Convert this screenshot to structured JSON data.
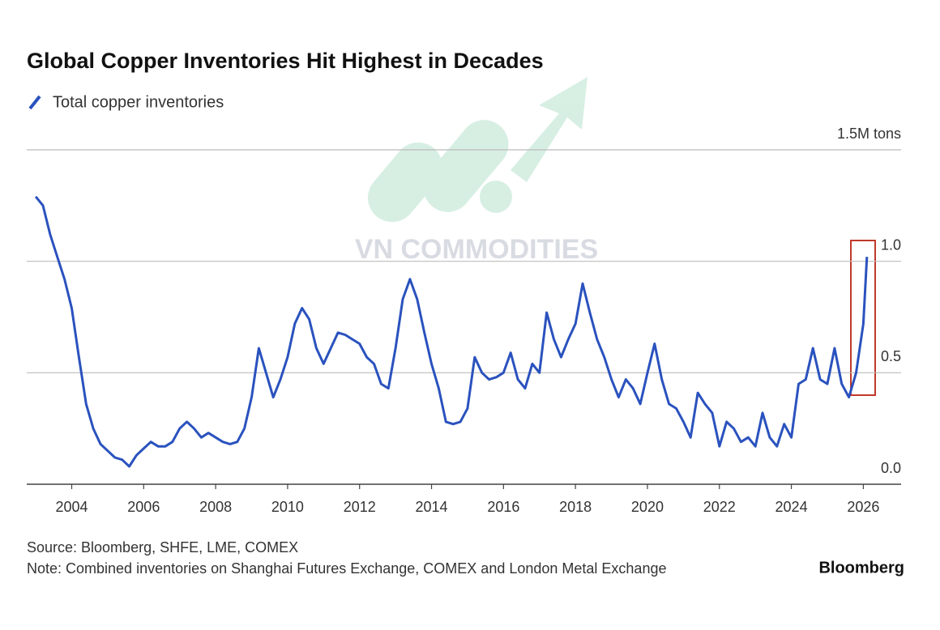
{
  "chart_data": {
    "type": "line",
    "title": "Global Copper Inventories Hit Highest in Decades",
    "watermark": "VN COMMODITIES",
    "source": "Source: Bloomberg, SHFE, LME, COMEX",
    "note": "Note: Combined inventories on Shanghai Futures Exchange, COMEX and London Metal Exchange",
    "brand": "Bloomberg",
    "x": [
      2003.0,
      2003.2,
      2003.4,
      2003.6,
      2003.8,
      2004.0,
      2004.2,
      2004.4,
      2004.6,
      2004.8,
      2005.0,
      2005.2,
      2005.4,
      2005.6,
      2005.8,
      2006.0,
      2006.2,
      2006.4,
      2006.6,
      2006.8,
      2007.0,
      2007.2,
      2007.4,
      2007.6,
      2007.8,
      2008.0,
      2008.2,
      2008.4,
      2008.6,
      2008.8,
      2009.0,
      2009.2,
      2009.4,
      2009.6,
      2009.8,
      2010.0,
      2010.2,
      2010.4,
      2010.6,
      2010.8,
      2011.0,
      2011.2,
      2011.4,
      2011.6,
      2011.8,
      2012.0,
      2012.2,
      2012.4,
      2012.6,
      2012.8,
      2013.0,
      2013.2,
      2013.4,
      2013.6,
      2013.8,
      2014.0,
      2014.2,
      2014.4,
      2014.6,
      2014.8,
      2015.0,
      2015.2,
      2015.4,
      2015.6,
      2015.8,
      2016.0,
      2016.2,
      2016.4,
      2016.6,
      2016.8,
      2017.0,
      2017.2,
      2017.4,
      2017.6,
      2017.8,
      2018.0,
      2018.2,
      2018.4,
      2018.6,
      2018.8,
      2019.0,
      2019.2,
      2019.4,
      2019.6,
      2019.8,
      2020.0,
      2020.2,
      2020.4,
      2020.6,
      2020.8,
      2021.0,
      2021.2,
      2021.4,
      2021.6,
      2021.8,
      2022.0,
      2022.2,
      2022.4,
      2022.6,
      2022.8,
      2023.0,
      2023.2,
      2023.4,
      2023.6,
      2023.8,
      2024.0,
      2024.2,
      2024.4,
      2024.6,
      2024.8,
      2025.0,
      2025.2,
      2025.4,
      2025.6,
      2025.8,
      2026.0,
      2026.1
    ],
    "series": [
      {
        "name": "Total copper inventories",
        "color": "#2a52be",
        "values": [
          1.29,
          1.25,
          1.12,
          1.02,
          0.92,
          0.79,
          0.57,
          0.36,
          0.25,
          0.18,
          0.15,
          0.12,
          0.11,
          0.08,
          0.13,
          0.16,
          0.19,
          0.17,
          0.17,
          0.19,
          0.25,
          0.28,
          0.25,
          0.21,
          0.23,
          0.21,
          0.19,
          0.18,
          0.19,
          0.25,
          0.39,
          0.61,
          0.5,
          0.39,
          0.47,
          0.57,
          0.72,
          0.79,
          0.74,
          0.61,
          0.54,
          0.61,
          0.68,
          0.67,
          0.65,
          0.63,
          0.57,
          0.54,
          0.45,
          0.43,
          0.61,
          0.83,
          0.92,
          0.83,
          0.68,
          0.54,
          0.43,
          0.28,
          0.27,
          0.28,
          0.34,
          0.57,
          0.5,
          0.47,
          0.48,
          0.5,
          0.59,
          0.47,
          0.43,
          0.54,
          0.5,
          0.77,
          0.65,
          0.57,
          0.65,
          0.72,
          0.9,
          0.77,
          0.65,
          0.57,
          0.47,
          0.39,
          0.47,
          0.43,
          0.36,
          0.5,
          0.63,
          0.47,
          0.36,
          0.34,
          0.28,
          0.21,
          0.41,
          0.36,
          0.32,
          0.17,
          0.28,
          0.25,
          0.19,
          0.21,
          0.17,
          0.32,
          0.21,
          0.17,
          0.27,
          0.21,
          0.45,
          0.47,
          0.61,
          0.47,
          0.45,
          0.61,
          0.45,
          0.39,
          0.5,
          0.72,
          1.02
        ]
      }
    ],
    "xlim": [
      2002.75,
      2027.05
    ],
    "xticks": [
      2004,
      2006,
      2008,
      2010,
      2012,
      2014,
      2016,
      2018,
      2020,
      2022,
      2024,
      2026
    ],
    "ylim": [
      0,
      1.5
    ],
    "yticks": [
      {
        "value": 0,
        "label": "0.0"
      },
      0.5,
      {
        "value": 1,
        "label": "1.0"
      },
      {
        "value": 1.5,
        "label": "1.5M tons"
      }
    ],
    "grid": true
  }
}
